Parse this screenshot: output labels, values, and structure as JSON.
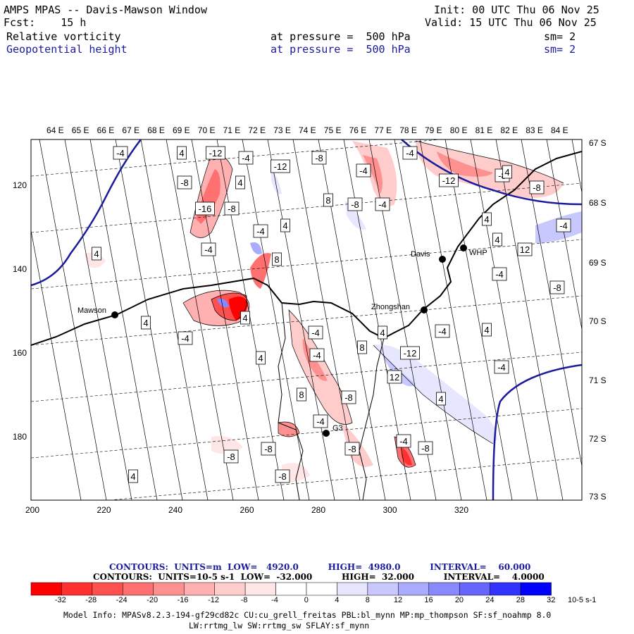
{
  "header": {
    "title": "AMPS MPAS -- Davis-Mawson Window",
    "fcst": "Fcst:    15 h",
    "init": "Init: 00 UTC Thu 06 Nov 25",
    "valid": "Valid: 15 UTC Thu 06 Nov 25",
    "field1": {
      "name": "Relative vorticity",
      "level": "at pressure =  500 hPa",
      "sm": "sm= 2"
    },
    "field2": {
      "name": "Geopotential height",
      "level": "at pressure =  500 hPa",
      "sm": "sm= 2"
    }
  },
  "lon_labels": [
    "64 E",
    "65 E",
    "66 E",
    "67 E",
    "68 E",
    "69 E",
    "70 E",
    "71 E",
    "72 E",
    "73 E",
    "74 E",
    "75 E",
    "76 E",
    "77 E",
    "78 E",
    "79 E",
    "80 E",
    "81 E",
    "82 E",
    "83 E",
    "84 E"
  ],
  "lat_labels": [
    "67 S",
    "68 S",
    "69 S",
    "70 S",
    "71 S",
    "72 S",
    "73 S"
  ],
  "y_ticks": [
    "120",
    "140",
    "160",
    "180"
  ],
  "x_ticks": [
    "200",
    "220",
    "240",
    "260",
    "280",
    "300",
    "320"
  ],
  "stations": [
    "Mawson",
    "Davis",
    "WHP",
    "Zhongshan",
    "G3"
  ],
  "contour_labels": [
    "-4",
    "4",
    "-12",
    "-4",
    "-8",
    "-4",
    "-8",
    "4",
    "-12",
    "-4",
    "-8",
    "-12",
    "-8",
    "-16",
    "-8",
    "4",
    "8",
    "-8",
    "-4",
    "-4",
    "4",
    "-4",
    "4",
    "12",
    "4",
    "-4",
    "8",
    "-4",
    "-8",
    "4",
    "4",
    "-4",
    "-4",
    "4",
    "-4",
    "4",
    "-12",
    "8",
    "4",
    "-4",
    "-4",
    "12",
    "4",
    "-8",
    "8",
    "-4",
    "-8",
    "-8",
    "-8",
    "4",
    "-8",
    "-4",
    "-8",
    "4"
  ],
  "contours_info": {
    "line1": "CONTOURS:  UNITS=m  LOW=   4920.0          HIGH=  4980.0          INTERVAL=    60.000",
    "line2": "CONTOURS:  UNITS=10-5 s-1  LOW=  -32.000          HIGH=  32.000          INTERVAL=    4.0000"
  },
  "colorbar": {
    "labels": [
      "-32",
      "-28",
      "-24",
      "-20",
      "-16",
      "-12",
      "-8",
      "-4",
      "0",
      "4",
      "8",
      "12",
      "16",
      "20",
      "24",
      "28",
      "32"
    ],
    "unit": "10-5 s-1",
    "colors": [
      "#ff0000",
      "#ff3030",
      "#ff5050",
      "#ff7070",
      "#ff9090",
      "#ffb0b0",
      "#ffcccc",
      "#ffe6e6",
      "#ffffff",
      "#ffffff",
      "#e6e6ff",
      "#c8c8ff",
      "#aaaaff",
      "#8888ff",
      "#6666ff",
      "#3333ff",
      "#0000ff"
    ]
  },
  "model_info": {
    "line1": "Model Info: MPASv8.2.3-194-gf29cd82c CU:cu_grell_freitas PBL:bl_mynn MP:mp_thompson SF:sf_noahmp 8.0",
    "line2": "LW:rrtmg_lw SW:rrtmg_sw SFLAY:sf_mynn"
  }
}
